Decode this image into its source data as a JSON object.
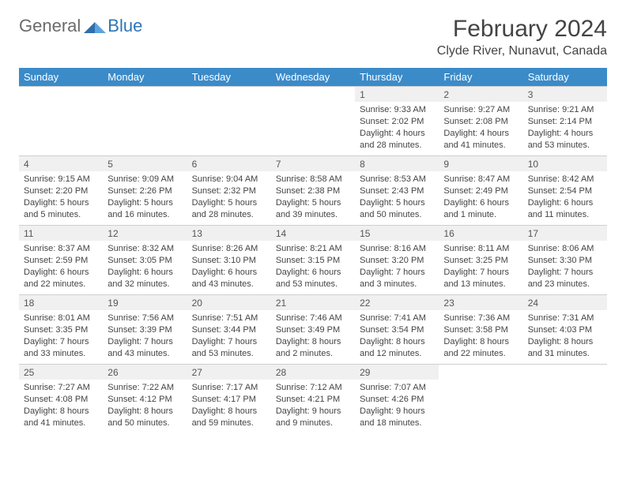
{
  "logo": {
    "general": "General",
    "blue": "Blue"
  },
  "title": "February 2024",
  "location": "Clyde River, Nunavut, Canada",
  "colors": {
    "header_bg": "#3b8bc9",
    "daynum_bg": "#f0f0f0",
    "border": "#cfcfcf",
    "text": "#444444"
  },
  "weekdays": [
    "Sunday",
    "Monday",
    "Tuesday",
    "Wednesday",
    "Thursday",
    "Friday",
    "Saturday"
  ],
  "weeks": [
    [
      null,
      null,
      null,
      null,
      {
        "n": "1",
        "sunrise": "Sunrise: 9:33 AM",
        "sunset": "Sunset: 2:02 PM",
        "daylight": "Daylight: 4 hours and 28 minutes."
      },
      {
        "n": "2",
        "sunrise": "Sunrise: 9:27 AM",
        "sunset": "Sunset: 2:08 PM",
        "daylight": "Daylight: 4 hours and 41 minutes."
      },
      {
        "n": "3",
        "sunrise": "Sunrise: 9:21 AM",
        "sunset": "Sunset: 2:14 PM",
        "daylight": "Daylight: 4 hours and 53 minutes."
      }
    ],
    [
      {
        "n": "4",
        "sunrise": "Sunrise: 9:15 AM",
        "sunset": "Sunset: 2:20 PM",
        "daylight": "Daylight: 5 hours and 5 minutes."
      },
      {
        "n": "5",
        "sunrise": "Sunrise: 9:09 AM",
        "sunset": "Sunset: 2:26 PM",
        "daylight": "Daylight: 5 hours and 16 minutes."
      },
      {
        "n": "6",
        "sunrise": "Sunrise: 9:04 AM",
        "sunset": "Sunset: 2:32 PM",
        "daylight": "Daylight: 5 hours and 28 minutes."
      },
      {
        "n": "7",
        "sunrise": "Sunrise: 8:58 AM",
        "sunset": "Sunset: 2:38 PM",
        "daylight": "Daylight: 5 hours and 39 minutes."
      },
      {
        "n": "8",
        "sunrise": "Sunrise: 8:53 AM",
        "sunset": "Sunset: 2:43 PM",
        "daylight": "Daylight: 5 hours and 50 minutes."
      },
      {
        "n": "9",
        "sunrise": "Sunrise: 8:47 AM",
        "sunset": "Sunset: 2:49 PM",
        "daylight": "Daylight: 6 hours and 1 minute."
      },
      {
        "n": "10",
        "sunrise": "Sunrise: 8:42 AM",
        "sunset": "Sunset: 2:54 PM",
        "daylight": "Daylight: 6 hours and 11 minutes."
      }
    ],
    [
      {
        "n": "11",
        "sunrise": "Sunrise: 8:37 AM",
        "sunset": "Sunset: 2:59 PM",
        "daylight": "Daylight: 6 hours and 22 minutes."
      },
      {
        "n": "12",
        "sunrise": "Sunrise: 8:32 AM",
        "sunset": "Sunset: 3:05 PM",
        "daylight": "Daylight: 6 hours and 32 minutes."
      },
      {
        "n": "13",
        "sunrise": "Sunrise: 8:26 AM",
        "sunset": "Sunset: 3:10 PM",
        "daylight": "Daylight: 6 hours and 43 minutes."
      },
      {
        "n": "14",
        "sunrise": "Sunrise: 8:21 AM",
        "sunset": "Sunset: 3:15 PM",
        "daylight": "Daylight: 6 hours and 53 minutes."
      },
      {
        "n": "15",
        "sunrise": "Sunrise: 8:16 AM",
        "sunset": "Sunset: 3:20 PM",
        "daylight": "Daylight: 7 hours and 3 minutes."
      },
      {
        "n": "16",
        "sunrise": "Sunrise: 8:11 AM",
        "sunset": "Sunset: 3:25 PM",
        "daylight": "Daylight: 7 hours and 13 minutes."
      },
      {
        "n": "17",
        "sunrise": "Sunrise: 8:06 AM",
        "sunset": "Sunset: 3:30 PM",
        "daylight": "Daylight: 7 hours and 23 minutes."
      }
    ],
    [
      {
        "n": "18",
        "sunrise": "Sunrise: 8:01 AM",
        "sunset": "Sunset: 3:35 PM",
        "daylight": "Daylight: 7 hours and 33 minutes."
      },
      {
        "n": "19",
        "sunrise": "Sunrise: 7:56 AM",
        "sunset": "Sunset: 3:39 PM",
        "daylight": "Daylight: 7 hours and 43 minutes."
      },
      {
        "n": "20",
        "sunrise": "Sunrise: 7:51 AM",
        "sunset": "Sunset: 3:44 PM",
        "daylight": "Daylight: 7 hours and 53 minutes."
      },
      {
        "n": "21",
        "sunrise": "Sunrise: 7:46 AM",
        "sunset": "Sunset: 3:49 PM",
        "daylight": "Daylight: 8 hours and 2 minutes."
      },
      {
        "n": "22",
        "sunrise": "Sunrise: 7:41 AM",
        "sunset": "Sunset: 3:54 PM",
        "daylight": "Daylight: 8 hours and 12 minutes."
      },
      {
        "n": "23",
        "sunrise": "Sunrise: 7:36 AM",
        "sunset": "Sunset: 3:58 PM",
        "daylight": "Daylight: 8 hours and 22 minutes."
      },
      {
        "n": "24",
        "sunrise": "Sunrise: 7:31 AM",
        "sunset": "Sunset: 4:03 PM",
        "daylight": "Daylight: 8 hours and 31 minutes."
      }
    ],
    [
      {
        "n": "25",
        "sunrise": "Sunrise: 7:27 AM",
        "sunset": "Sunset: 4:08 PM",
        "daylight": "Daylight: 8 hours and 41 minutes."
      },
      {
        "n": "26",
        "sunrise": "Sunrise: 7:22 AM",
        "sunset": "Sunset: 4:12 PM",
        "daylight": "Daylight: 8 hours and 50 minutes."
      },
      {
        "n": "27",
        "sunrise": "Sunrise: 7:17 AM",
        "sunset": "Sunset: 4:17 PM",
        "daylight": "Daylight: 8 hours and 59 minutes."
      },
      {
        "n": "28",
        "sunrise": "Sunrise: 7:12 AM",
        "sunset": "Sunset: 4:21 PM",
        "daylight": "Daylight: 9 hours and 9 minutes."
      },
      {
        "n": "29",
        "sunrise": "Sunrise: 7:07 AM",
        "sunset": "Sunset: 4:26 PM",
        "daylight": "Daylight: 9 hours and 18 minutes."
      },
      null,
      null
    ]
  ]
}
